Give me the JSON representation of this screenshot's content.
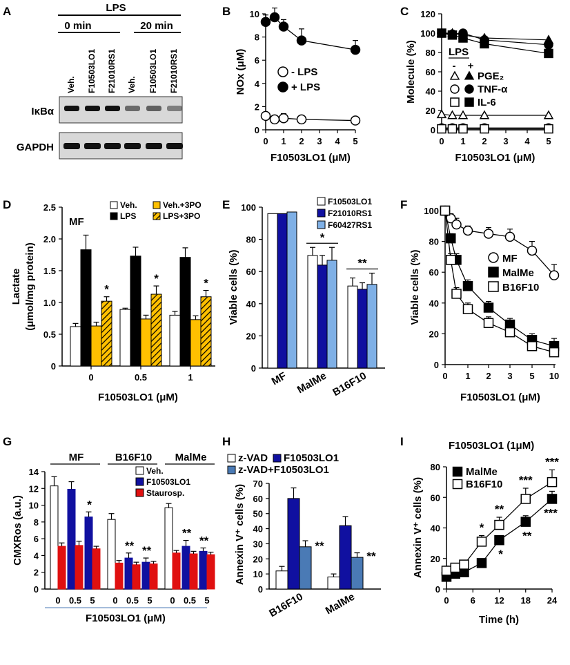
{
  "panels": {
    "A": "A",
    "B": "B",
    "C": "C",
    "D": "D",
    "E": "E",
    "F": "F",
    "G": "G",
    "H": "H",
    "I": "I"
  },
  "blot": {
    "lps": "LPS",
    "t0": "0 min",
    "t20": "20 min",
    "lanes": [
      "Veh.",
      "F10503LO1",
      "F21010RS1",
      "Veh.",
      "F10503LO1",
      "F21010RS1"
    ],
    "rows": [
      "IκBα",
      "GAPDH"
    ]
  },
  "chart_data": [
    {
      "id": "B",
      "type": "line",
      "xlabel": "F10503LO1 (μM)",
      "ylabel": "NOx (μM)",
      "xlim": [
        0,
        5
      ],
      "ylim": [
        0,
        10
      ],
      "xticks": [
        "0",
        "1",
        "2",
        "3",
        "4",
        "5"
      ],
      "yticks": [
        "0",
        "2",
        "4",
        "6",
        "8",
        "10"
      ],
      "series": [
        {
          "name": "- LPS",
          "marker": "circle-open",
          "x": [
            0,
            0.5,
            1,
            2,
            5
          ],
          "y": [
            1.2,
            0.9,
            1.0,
            0.9,
            0.8
          ],
          "err": [
            0.3,
            0.2,
            0.4,
            0.3,
            0.2
          ]
        },
        {
          "name": "+ LPS",
          "marker": "circle-filled",
          "x": [
            0,
            0.5,
            1,
            2,
            5
          ],
          "y": [
            9.3,
            9.7,
            8.9,
            7.7,
            6.9
          ],
          "err": [
            0.6,
            0.8,
            0.6,
            1.0,
            0.8
          ]
        }
      ]
    },
    {
      "id": "C",
      "type": "line",
      "xlabel": "F10503LO1 (μM)",
      "ylabel": "Molecule (%)",
      "xlim": [
        0,
        5
      ],
      "ylim": [
        0,
        120
      ],
      "xticks": [
        "0",
        "1",
        "2",
        "3",
        "4",
        "5"
      ],
      "yticks": [
        "0",
        "20",
        "40",
        "60",
        "80",
        "100",
        "120"
      ],
      "legend_title": "LPS",
      "legend_minus": "-",
      "legend_plus": "+",
      "legend_labels": [
        "PGE₂",
        "TNF-α",
        "IL-6"
      ],
      "series": [
        {
          "name": "PGE2 -LPS",
          "marker": "triangle-open",
          "x": [
            0,
            0.5,
            1,
            2,
            5
          ],
          "y": [
            16,
            15,
            15,
            15,
            15
          ]
        },
        {
          "name": "TNF-α -LPS",
          "marker": "circle-open",
          "x": [
            0,
            0.5,
            1,
            2,
            5
          ],
          "y": [
            2,
            2,
            2,
            2,
            2
          ]
        },
        {
          "name": "IL-6 -LPS",
          "marker": "square-open",
          "x": [
            0,
            0.5,
            1,
            2,
            5
          ],
          "y": [
            1,
            1,
            1,
            1,
            1
          ]
        },
        {
          "name": "PGE2 +LPS",
          "marker": "triangle-filled",
          "x": [
            0,
            0.5,
            1,
            2,
            5
          ],
          "y": [
            100,
            100,
            98,
            95,
            93
          ]
        },
        {
          "name": "TNF-α +LPS",
          "marker": "circle-filled",
          "x": [
            0,
            0.5,
            1,
            2,
            5
          ],
          "y": [
            100,
            99,
            100,
            93,
            88
          ]
        },
        {
          "name": "IL-6 +LPS",
          "marker": "square-filled",
          "x": [
            0,
            0.5,
            1,
            2,
            5
          ],
          "y": [
            100,
            98,
            95,
            89,
            79
          ]
        }
      ]
    },
    {
      "id": "D",
      "type": "bar",
      "title": "MF",
      "xlabel": "F10503LO1 (μM)",
      "ylabel": "Lactate",
      "ylabel2": "(μmol/mg protein)",
      "ylim": [
        0,
        2.5
      ],
      "yticks": [
        "0",
        "0.5",
        "1.0",
        "1.5",
        "2.0",
        "2.5"
      ],
      "categories": [
        "0",
        "0.5",
        "1"
      ],
      "series": [
        {
          "name": "Veh.",
          "color": "#ffffff",
          "values": [
            0.62,
            0.89,
            0.8
          ],
          "err": [
            0.05,
            0.02,
            0.06
          ]
        },
        {
          "name": "LPS",
          "color": "#000000",
          "values": [
            1.83,
            1.73,
            1.71
          ],
          "err": [
            0.23,
            0.14,
            0.15
          ]
        },
        {
          "name": "Veh.+3PO",
          "color": "#ffc000",
          "values": [
            0.63,
            0.74,
            0.73
          ],
          "err": [
            0.06,
            0.06,
            0.06
          ]
        },
        {
          "name": "LPS+3PO",
          "color": "#ffc000",
          "hatch": true,
          "values": [
            1.02,
            1.13,
            1.09
          ],
          "err": [
            0.07,
            0.13,
            0.1
          ]
        }
      ],
      "stars": [
        "*",
        "*",
        "*"
      ]
    },
    {
      "id": "E",
      "type": "bar",
      "ylabel": "Viable cells (%)",
      "ylim": [
        0,
        100
      ],
      "yticks": [
        "0",
        "20",
        "40",
        "60",
        "80",
        "100"
      ],
      "categories": [
        "MF",
        "MalMe",
        "B16F10"
      ],
      "series": [
        {
          "name": "F10503LO1",
          "color": "#ffffff",
          "values": [
            96,
            70,
            51
          ],
          "err": [
            0,
            5,
            5
          ]
        },
        {
          "name": "F21010RS1",
          "color": "#1010a0",
          "values": [
            96,
            64,
            49
          ],
          "err": [
            0,
            6,
            4
          ]
        },
        {
          "name": "F60427RS1",
          "color": "#7fb0e6",
          "values": [
            97,
            67,
            52
          ],
          "err": [
            0,
            8,
            7
          ]
        }
      ],
      "stars": [
        "",
        "*",
        "**"
      ]
    },
    {
      "id": "F",
      "type": "line",
      "xlabel": "F10503LO1 (μM)",
      "ylabel": "Viable cells (%)",
      "ylim": [
        0,
        100
      ],
      "yticks": [
        "0",
        "20",
        "40",
        "60",
        "80",
        "100"
      ],
      "xticks": [
        "0",
        "1",
        "2",
        "3",
        "5",
        "10"
      ],
      "series": [
        {
          "name": "MF",
          "marker": "circle-open",
          "x": [
            0,
            0.25,
            0.5,
            1,
            2,
            3,
            5,
            10
          ],
          "y": [
            100,
            95,
            91,
            87,
            85,
            83,
            74,
            58
          ],
          "err": [
            0,
            3,
            4,
            3,
            4,
            5,
            6,
            7
          ]
        },
        {
          "name": "MalMe",
          "marker": "square-filled",
          "x": [
            0,
            0.25,
            0.5,
            1,
            2,
            3,
            5,
            10
          ],
          "y": [
            100,
            82,
            68,
            51,
            37,
            26,
            16,
            12
          ],
          "err": [
            0,
            3,
            4,
            4,
            4,
            4,
            4,
            5
          ]
        },
        {
          "name": "B16F10",
          "marker": "square-open",
          "x": [
            0,
            0.25,
            0.5,
            1,
            2,
            3,
            5,
            10
          ],
          "y": [
            100,
            68,
            46,
            36,
            27,
            21,
            12,
            8
          ],
          "err": [
            0,
            4,
            4,
            4,
            4,
            3,
            3,
            3
          ]
        }
      ]
    },
    {
      "id": "G",
      "type": "bar",
      "ylabel": "CMXRos (a.u.)",
      "xlabel": "F10503LO1 (μM)",
      "ylim": [
        0,
        14
      ],
      "yticks": [
        "0",
        "2",
        "4",
        "6",
        "8",
        "10",
        "12",
        "14"
      ],
      "groups": [
        "MF",
        "B16F10",
        "MalMe"
      ],
      "doses": [
        "0",
        "0.5",
        "5"
      ],
      "legend": [
        "Veh.",
        "F10503LO1",
        "Staurosp."
      ],
      "colors": {
        "veh": "#ffffff",
        "f105": "#1010a0",
        "stauro": "#e01010"
      },
      "values": [
        {
          "group": "MF",
          "dose": "0",
          "pair": [
            "veh",
            "stauro"
          ],
          "v": [
            12.3,
            5.1
          ],
          "err": [
            1.1,
            0.4
          ]
        },
        {
          "group": "MF",
          "dose": "0.5",
          "pair": [
            "f105",
            "stauro"
          ],
          "v": [
            11.9,
            5.2
          ],
          "err": [
            0.9,
            0.5
          ]
        },
        {
          "group": "MF",
          "dose": "5",
          "pair": [
            "f105",
            "stauro"
          ],
          "v": [
            8.6,
            4.8
          ],
          "err": [
            0.6,
            0.3
          ]
        },
        {
          "group": "B16F10",
          "dose": "0",
          "pair": [
            "veh",
            "stauro"
          ],
          "v": [
            8.3,
            3.1
          ],
          "err": [
            0.7,
            0.3
          ]
        },
        {
          "group": "B16F10",
          "dose": "0.5",
          "pair": [
            "f105",
            "stauro"
          ],
          "v": [
            3.7,
            2.9
          ],
          "err": [
            0.6,
            0.3
          ]
        },
        {
          "group": "B16F10",
          "dose": "5",
          "pair": [
            "f105",
            "stauro"
          ],
          "v": [
            3.2,
            3.0
          ],
          "err": [
            0.5,
            0.3
          ]
        },
        {
          "group": "MalMe",
          "dose": "0",
          "pair": [
            "veh",
            "stauro"
          ],
          "v": [
            9.7,
            4.3
          ],
          "err": [
            0.5,
            0.3
          ]
        },
        {
          "group": "MalMe",
          "dose": "0.5",
          "pair": [
            "f105",
            "stauro"
          ],
          "v": [
            5.1,
            4.2
          ],
          "err": [
            0.7,
            0.3
          ]
        },
        {
          "group": "MalMe",
          "dose": "5",
          "pair": [
            "f105",
            "stauro"
          ],
          "v": [
            4.5,
            4.1
          ],
          "err": [
            0.4,
            0.3
          ]
        }
      ],
      "stars": [
        "",
        "",
        "*",
        "",
        "**",
        "**",
        "",
        "**",
        "**"
      ]
    },
    {
      "id": "H",
      "type": "bar",
      "ylabel": "Annexin V⁺ cells (%)",
      "ylim": [
        0,
        70
      ],
      "yticks": [
        "0",
        "10",
        "20",
        "30",
        "40",
        "50",
        "60",
        "70"
      ],
      "categories": [
        "B16F10",
        "MalMe"
      ],
      "series": [
        {
          "name": "z-VAD",
          "color": "#ffffff",
          "values": [
            12,
            8
          ],
          "err": [
            3,
            2
          ]
        },
        {
          "name": "F10503LO1",
          "color": "#1010a0",
          "values": [
            60,
            42
          ],
          "err": [
            7,
            6
          ]
        },
        {
          "name": "z-VAD+F10503LO1",
          "color": "#4a7ab5",
          "values": [
            28,
            21
          ],
          "err": [
            4,
            3
          ]
        }
      ],
      "stars": [
        "**",
        "**"
      ]
    },
    {
      "id": "I",
      "type": "line",
      "title": "F10503LO1 (1μM)",
      "xlabel": "Time (h)",
      "ylabel": "Annexin V⁺ cells (%)",
      "xlim": [
        0,
        24
      ],
      "ylim": [
        0,
        80
      ],
      "xticks": [
        "0",
        "6",
        "12",
        "18",
        "24"
      ],
      "yticks": [
        "0",
        "20",
        "40",
        "60",
        "80"
      ],
      "series": [
        {
          "name": "MalMe",
          "marker": "square-filled",
          "x": [
            0,
            2,
            4,
            8,
            12,
            18,
            24
          ],
          "y": [
            8,
            10,
            11,
            17,
            32,
            44,
            59
          ],
          "err": [
            2,
            2,
            2,
            2,
            3,
            4,
            5
          ]
        },
        {
          "name": "B16F10",
          "marker": "square-open",
          "x": [
            0,
            2,
            4,
            8,
            12,
            18,
            24
          ],
          "y": [
            12,
            14,
            16,
            31,
            42,
            59,
            70
          ],
          "err": [
            3,
            2,
            2,
            4,
            5,
            7,
            8
          ]
        }
      ],
      "stars_B16F10": [
        "",
        "",
        "",
        "*",
        "**",
        "***",
        "***"
      ],
      "stars_MalMe": [
        "",
        "",
        "",
        "",
        "*",
        "**",
        "***"
      ]
    }
  ]
}
